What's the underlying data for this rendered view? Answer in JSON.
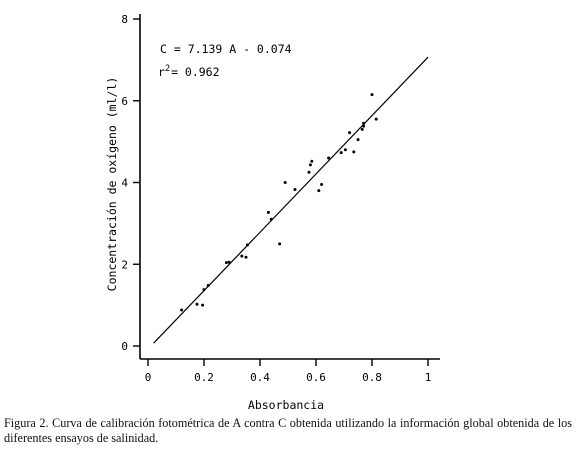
{
  "chart_data": {
    "type": "scatter",
    "xlabel": "Absorbancia",
    "ylabel": "Concentración de oxígeno (ml/l)",
    "xlim": [
      0,
      1
    ],
    "ylim": [
      0,
      8
    ],
    "x_ticks": [
      "0",
      "0.2",
      "0.4",
      "0.6",
      "0.8",
      "1"
    ],
    "y_ticks": [
      "0",
      "2",
      "4",
      "6",
      "8"
    ],
    "equation": "C = 7.139 A - 0.074",
    "r2_prefix": "r",
    "r2_sup": "2",
    "r2_value": "= 0.962",
    "fit": {
      "slope": 7.139,
      "intercept": -0.074,
      "x_range": [
        0.02,
        1.0
      ]
    },
    "points": [
      {
        "x": 0.12,
        "y": 0.88
      },
      {
        "x": 0.175,
        "y": 1.02
      },
      {
        "x": 0.195,
        "y": 1.0
      },
      {
        "x": 0.2,
        "y": 1.38
      },
      {
        "x": 0.215,
        "y": 1.48
      },
      {
        "x": 0.28,
        "y": 2.04
      },
      {
        "x": 0.29,
        "y": 2.05
      },
      {
        "x": 0.335,
        "y": 2.2
      },
      {
        "x": 0.35,
        "y": 2.17
      },
      {
        "x": 0.355,
        "y": 2.47
      },
      {
        "x": 0.43,
        "y": 3.27
      },
      {
        "x": 0.44,
        "y": 3.1
      },
      {
        "x": 0.47,
        "y": 2.5
      },
      {
        "x": 0.49,
        "y": 4.0
      },
      {
        "x": 0.525,
        "y": 3.83
      },
      {
        "x": 0.575,
        "y": 4.25
      },
      {
        "x": 0.58,
        "y": 4.43
      },
      {
        "x": 0.585,
        "y": 4.52
      },
      {
        "x": 0.61,
        "y": 3.8
      },
      {
        "x": 0.62,
        "y": 3.95
      },
      {
        "x": 0.645,
        "y": 4.6
      },
      {
        "x": 0.69,
        "y": 4.73
      },
      {
        "x": 0.705,
        "y": 4.8
      },
      {
        "x": 0.72,
        "y": 5.22
      },
      {
        "x": 0.735,
        "y": 4.75
      },
      {
        "x": 0.75,
        "y": 5.05
      },
      {
        "x": 0.765,
        "y": 5.3
      },
      {
        "x": 0.77,
        "y": 5.38
      },
      {
        "x": 0.77,
        "y": 5.45
      },
      {
        "x": 0.8,
        "y": 6.15
      },
      {
        "x": 0.815,
        "y": 5.55
      }
    ],
    "grid": false
  },
  "caption": "Figura 2.  Curva de calibración fotométrica de A contra C obtenida utilizando la información global obtenida de los diferentes ensayos de salinidad."
}
